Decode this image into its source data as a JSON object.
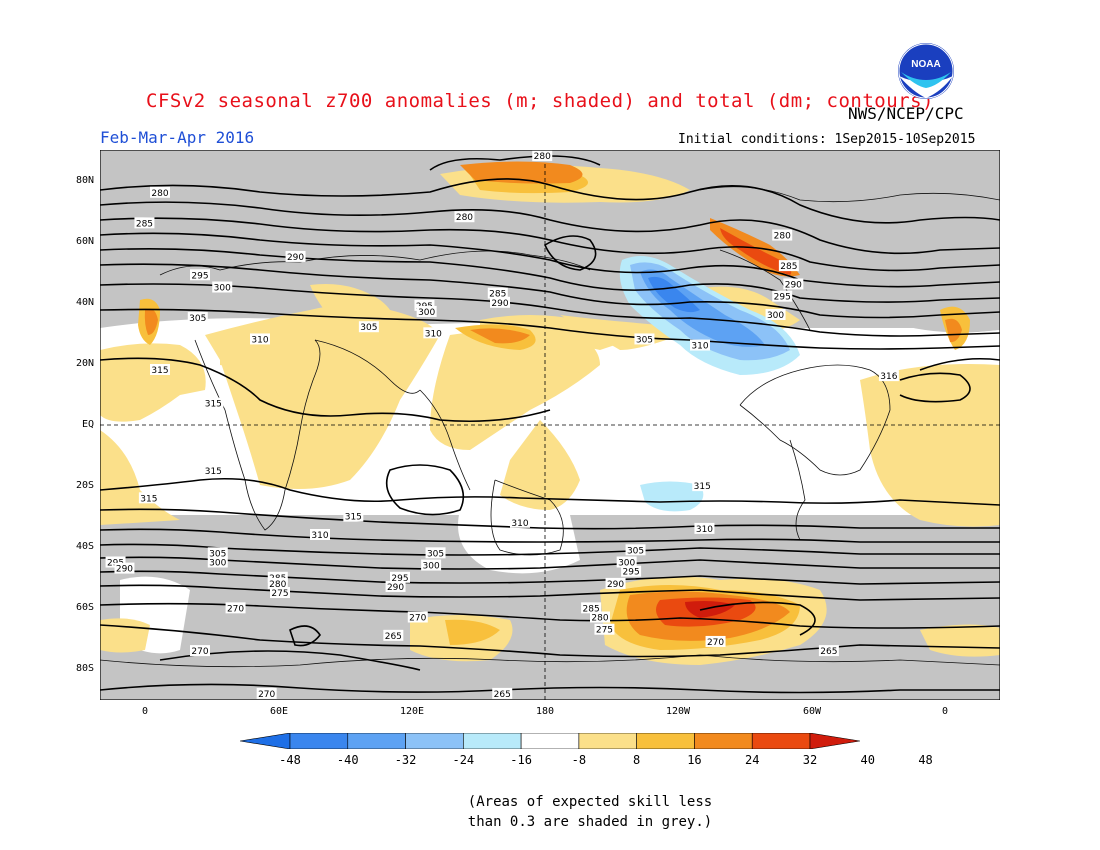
{
  "header": {
    "title": "CFSv2 seasonal z700 anomalies (m; shaded) and total (dm; contours)",
    "agency": "NWS/NCEP/CPC",
    "period": "Feb-Mar-Apr 2016",
    "initial_conditions": "Initial conditions: 1Sep2015-10Sep2015",
    "logo_text": "NOAA"
  },
  "colors": {
    "title": "#e8101a",
    "period": "#1f4fd6",
    "grey_mask": "#c4c4c4",
    "neg": [
      "#1e6fe6",
      "#3a86ee",
      "#5da2f3",
      "#8cc2f7",
      "#b8eafa"
    ],
    "neutral": "#ffffff",
    "pos": [
      "#fbe08a",
      "#f8c03c",
      "#f28a1e",
      "#ea4a10",
      "#d01c0c"
    ]
  },
  "axes": {
    "lat_labels": [
      "80N",
      "60N",
      "40N",
      "20N",
      "EQ",
      "20S",
      "40S",
      "60S",
      "80S"
    ],
    "lon_labels": [
      "0",
      "60E",
      "120E",
      "180",
      "120W",
      "60W",
      "0"
    ]
  },
  "colorbar": {
    "labels": [
      "-48",
      "-40",
      "-32",
      "-24",
      "-16",
      "-8",
      "8",
      "16",
      "24",
      "32",
      "40",
      "48"
    ]
  },
  "contour_labels": [
    {
      "text": "280",
      "lon": 179,
      "lat": 88
    },
    {
      "text": "280",
      "lon": 7,
      "lat": 76
    },
    {
      "text": "285",
      "lon": 0,
      "lat": 66
    },
    {
      "text": "280",
      "lon": 144,
      "lat": 68
    },
    {
      "text": "280",
      "lon": 287,
      "lat": 62
    },
    {
      "text": "285",
      "lon": 290,
      "lat": 52
    },
    {
      "text": "290",
      "lon": 292,
      "lat": 46
    },
    {
      "text": "295",
      "lon": 287,
      "lat": 42
    },
    {
      "text": "300",
      "lon": 284,
      "lat": 36
    },
    {
      "text": "290",
      "lon": 68,
      "lat": 55
    },
    {
      "text": "295",
      "lon": 25,
      "lat": 49
    },
    {
      "text": "300",
      "lon": 35,
      "lat": 45
    },
    {
      "text": "305",
      "lon": 24,
      "lat": 35
    },
    {
      "text": "310",
      "lon": 52,
      "lat": 28
    },
    {
      "text": "305",
      "lon": 101,
      "lat": 32
    },
    {
      "text": "295",
      "lon": 126,
      "lat": 39
    },
    {
      "text": "300",
      "lon": 127,
      "lat": 37
    },
    {
      "text": "285",
      "lon": 159,
      "lat": 43
    },
    {
      "text": "290",
      "lon": 160,
      "lat": 40
    },
    {
      "text": "310",
      "lon": 130,
      "lat": 30
    },
    {
      "text": "305",
      "lon": 225,
      "lat": 28
    },
    {
      "text": "310",
      "lon": 250,
      "lat": 26
    },
    {
      "text": "315",
      "lon": 7,
      "lat": 18
    },
    {
      "text": "315",
      "lon": 31,
      "lat": 7
    },
    {
      "text": "316",
      "lon": 335,
      "lat": 16
    },
    {
      "text": "315",
      "lon": 31,
      "lat": -15
    },
    {
      "text": "315",
      "lon": 2,
      "lat": -24
    },
    {
      "text": "315",
      "lon": 94,
      "lat": -30
    },
    {
      "text": "310",
      "lon": 79,
      "lat": -36
    },
    {
      "text": "315",
      "lon": 251,
      "lat": -20
    },
    {
      "text": "310",
      "lon": 169,
      "lat": -32
    },
    {
      "text": "310",
      "lon": 252,
      "lat": -34
    },
    {
      "text": "305",
      "lon": 33,
      "lat": -42
    },
    {
      "text": "300",
      "lon": 33,
      "lat": -45
    },
    {
      "text": "305",
      "lon": 131,
      "lat": -42
    },
    {
      "text": "300",
      "lon": 129,
      "lat": -46
    },
    {
      "text": "305",
      "lon": 221,
      "lat": -41
    },
    {
      "text": "300",
      "lon": 217,
      "lat": -45
    },
    {
      "text": "295",
      "lon": 219,
      "lat": -48
    },
    {
      "text": "290",
      "lon": 212,
      "lat": -52
    },
    {
      "text": "295",
      "lon": 115,
      "lat": -50
    },
    {
      "text": "290",
      "lon": 113,
      "lat": -53
    },
    {
      "text": "295",
      "lon": -13,
      "lat": -45
    },
    {
      "text": "290",
      "lon": -9,
      "lat": -47
    },
    {
      "text": "285",
      "lon": 60,
      "lat": -50
    },
    {
      "text": "280",
      "lon": 60,
      "lat": -52
    },
    {
      "text": "275",
      "lon": 61,
      "lat": -55
    },
    {
      "text": "270",
      "lon": 41,
      "lat": -60
    },
    {
      "text": "270",
      "lon": 123,
      "lat": -63
    },
    {
      "text": "265",
      "lon": 112,
      "lat": -69
    },
    {
      "text": "270",
      "lon": 25,
      "lat": -74
    },
    {
      "text": "285",
      "lon": 201,
      "lat": -60
    },
    {
      "text": "280",
      "lon": 205,
      "lat": -63
    },
    {
      "text": "275",
      "lon": 207,
      "lat": -67
    },
    {
      "text": "270",
      "lon": 257,
      "lat": -71
    },
    {
      "text": "265",
      "lon": 308,
      "lat": -74
    },
    {
      "text": "265",
      "lon": 161,
      "lat": -88
    },
    {
      "text": "270",
      "lon": 55,
      "lat": -88
    }
  ]
}
